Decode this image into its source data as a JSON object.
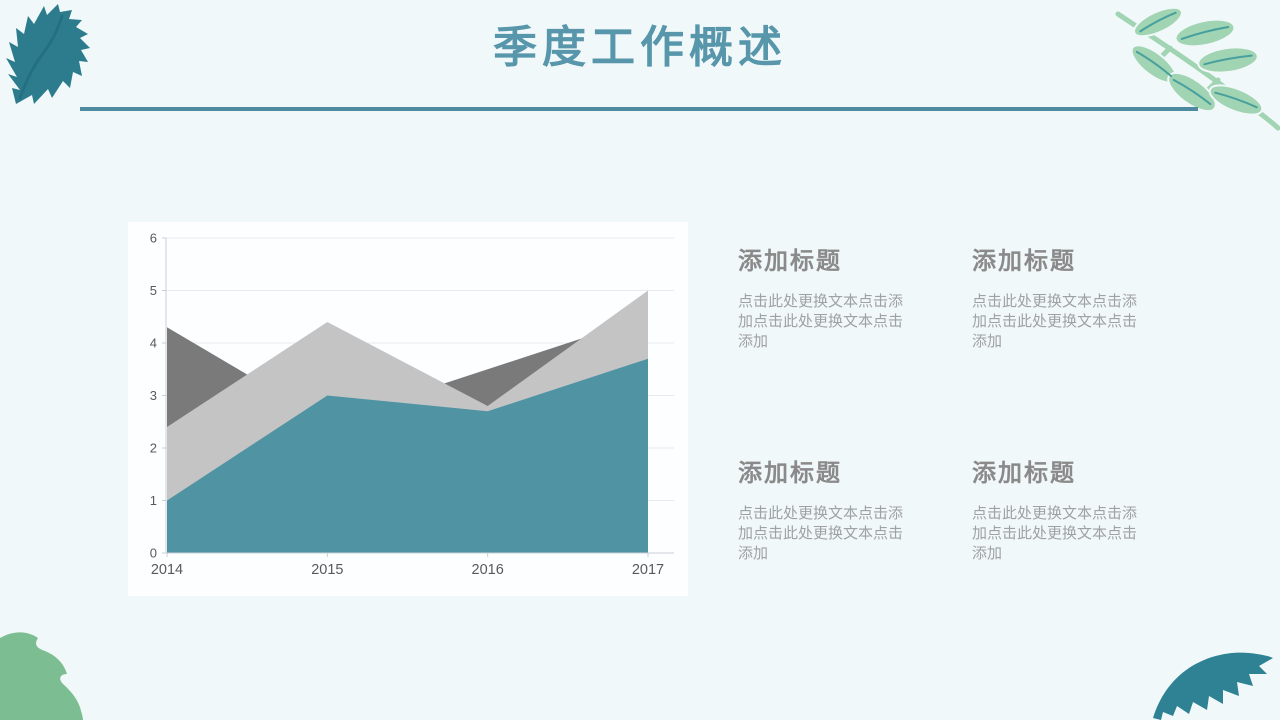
{
  "slide": {
    "title": "季度工作概述",
    "background_color": "#f1f8f9",
    "title_color": "#5796ab",
    "divider_color": "#4e8ba0"
  },
  "chart_data": {
    "type": "area",
    "stacked": false,
    "title": "",
    "xlabel": "",
    "ylabel": "",
    "x": [
      "2014",
      "2015",
      "2016",
      "2017"
    ],
    "series": [
      {
        "name": "series-1-dark-gray",
        "color": "#7a7a7a",
        "values": [
          4.3,
          2.5,
          3.5,
          4.5
        ]
      },
      {
        "name": "series-2-light-gray",
        "color": "#c4c4c5",
        "values": [
          2.4,
          4.4,
          2.8,
          5.0
        ]
      },
      {
        "name": "series-3-teal",
        "color": "#5094a3",
        "values": [
          1.0,
          3.0,
          2.7,
          3.7
        ]
      }
    ],
    "ylim": [
      0,
      6
    ],
    "yticks": [
      "0",
      "1",
      "2",
      "3",
      "4",
      "5",
      "6"
    ],
    "grid": true,
    "legend": false,
    "axis_label_color": "#595959",
    "axis_line_color": "#c9cfd4",
    "grid_color": "#e6ebed",
    "plot_background": "#fdfeff"
  },
  "content_blocks": [
    {
      "title": "添加标题",
      "body": "点击此处更换文本点击添加点击此处更换文本点击添加"
    },
    {
      "title": "添加标题",
      "body": "点击此处更换文本点击添加点击此处更换文本点击添加"
    },
    {
      "title": "添加标题",
      "body": "点击此处更换文本点击添加点击此处更换文本点击添加"
    },
    {
      "title": "添加标题",
      "body": "点击此处更换文本点击添加点击此处更换文本点击添加"
    }
  ],
  "decorations": {
    "top_left_leaf_color": "#2c7c8e",
    "top_left_leaf_vein_color": "#1f6a7d",
    "top_right_branch_leaf_color": "#a0d4b2",
    "top_right_branch_vein_color": "#48a09e",
    "bottom_left_leaf_color": "#7cbe92",
    "bottom_right_leaf_color": "#2e8294"
  }
}
